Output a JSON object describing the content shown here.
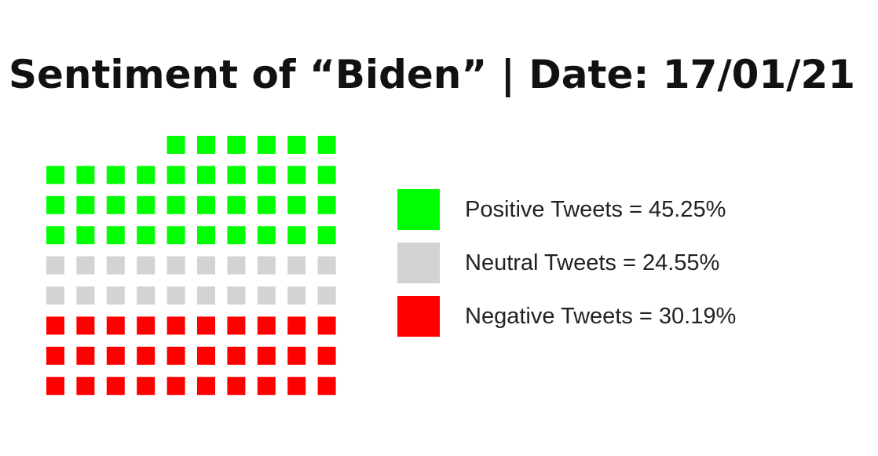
{
  "chart_data": {
    "type": "waffle",
    "title": "Sentiment of “Biden” | Date: 17/01/21",
    "grid": {
      "rows": 9,
      "columns": 10,
      "total_cells": 86
    },
    "series": [
      {
        "name": "Positive Tweets",
        "label": "Positive Tweets = 45.25%",
        "value": 45.25,
        "cells": 36,
        "color": "#00ff00"
      },
      {
        "name": "Neutral Tweets",
        "label": "Neutral Tweets = 24.55%",
        "value": 24.55,
        "cells": 20,
        "color": "#d3d3d3"
      },
      {
        "name": "Negative Tweets",
        "label": "Negative Tweets = 30.19%",
        "value": 30.19,
        "cells": 30,
        "color": "#ff0000"
      }
    ],
    "legend": "right"
  }
}
